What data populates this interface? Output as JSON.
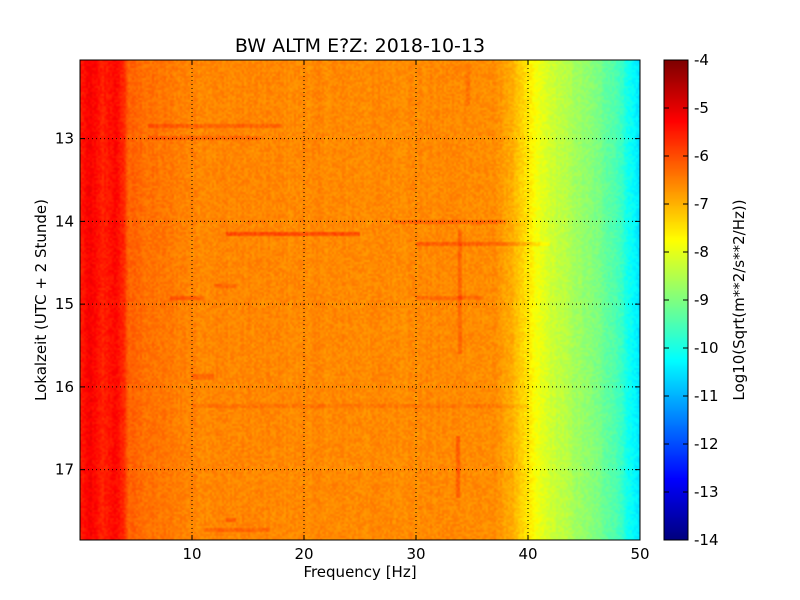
{
  "chart_data": {
    "type": "heatmap",
    "title": "BW ALTM E?Z: 2018-10-13",
    "xlabel": "Frequency [Hz]",
    "ylabel": "Lokalzeit (UTC + 2 Stunde)",
    "xlim": [
      0,
      50
    ],
    "ylim": [
      17.85,
      12.05
    ],
    "x_ticks": [
      10,
      20,
      30,
      40,
      50
    ],
    "y_ticks": [
      13,
      14,
      15,
      16,
      17
    ],
    "grid": true,
    "colorbar": {
      "label": "Log10(Sqrt(m**2/s**2/Hz))",
      "range": [
        -14,
        -4
      ],
      "ticks": [
        -4,
        -5,
        -6,
        -7,
        -8,
        -9,
        -10,
        -11,
        -12,
        -13,
        -14
      ],
      "colormap": "jet"
    },
    "frequency_profile": {
      "frequency_hz": [
        0,
        1,
        2,
        3,
        3.9,
        4.3,
        6,
        10,
        20,
        30,
        35,
        37,
        38,
        39,
        40,
        41,
        42,
        44,
        46,
        48,
        49,
        50
      ],
      "log_amplitude": [
        -5.5,
        -5.2,
        -5.6,
        -5.3,
        -5.6,
        -6.2,
        -6.35,
        -6.55,
        -6.6,
        -6.6,
        -6.6,
        -6.65,
        -6.8,
        -7.1,
        -7.55,
        -7.95,
        -8.2,
        -8.6,
        -9.0,
        -9.5,
        -10.1,
        -10.5
      ]
    },
    "features": [
      {
        "time": 14.15,
        "f_start": 13,
        "f_end": 25,
        "delta": 0.6
      },
      {
        "time": 14.28,
        "f_start": 30,
        "f_end": 42,
        "delta": 0.4
      },
      {
        "time": 14.0,
        "f_start": 28,
        "f_end": 38,
        "delta": 0.35
      },
      {
        "time": 12.85,
        "f_start": 6,
        "f_end": 18,
        "delta": 0.35
      },
      {
        "time": 13.0,
        "f_start": 6,
        "f_end": 16,
        "delta": 0.3
      },
      {
        "time": 14.93,
        "f_start": 8,
        "f_end": 11,
        "delta": 0.4
      },
      {
        "time": 14.93,
        "f_start": 30,
        "f_end": 36,
        "delta": 0.3
      },
      {
        "time": 14.78,
        "f_start": 12,
        "f_end": 14,
        "delta": 0.3
      },
      {
        "time": 15.88,
        "f_start": 10,
        "f_end": 12,
        "delta": 0.3
      },
      {
        "time": 16.22,
        "f_start": 10,
        "f_end": 40,
        "delta": 0.18
      },
      {
        "time": 17.72,
        "f_start": 11,
        "f_end": 17,
        "delta": 0.3
      },
      {
        "time": 17.6,
        "f_start": 13,
        "f_end": 14,
        "delta": 0.4
      }
    ],
    "vertical_features": [
      {
        "frequency": 34,
        "t_start": 14.1,
        "t_end": 15.6,
        "delta": 0.35
      },
      {
        "frequency": 33.8,
        "t_start": 16.6,
        "t_end": 17.35,
        "delta": 0.4
      },
      {
        "frequency": 34.6,
        "t_start": 12.1,
        "t_end": 12.6,
        "delta": 0.3
      }
    ]
  }
}
